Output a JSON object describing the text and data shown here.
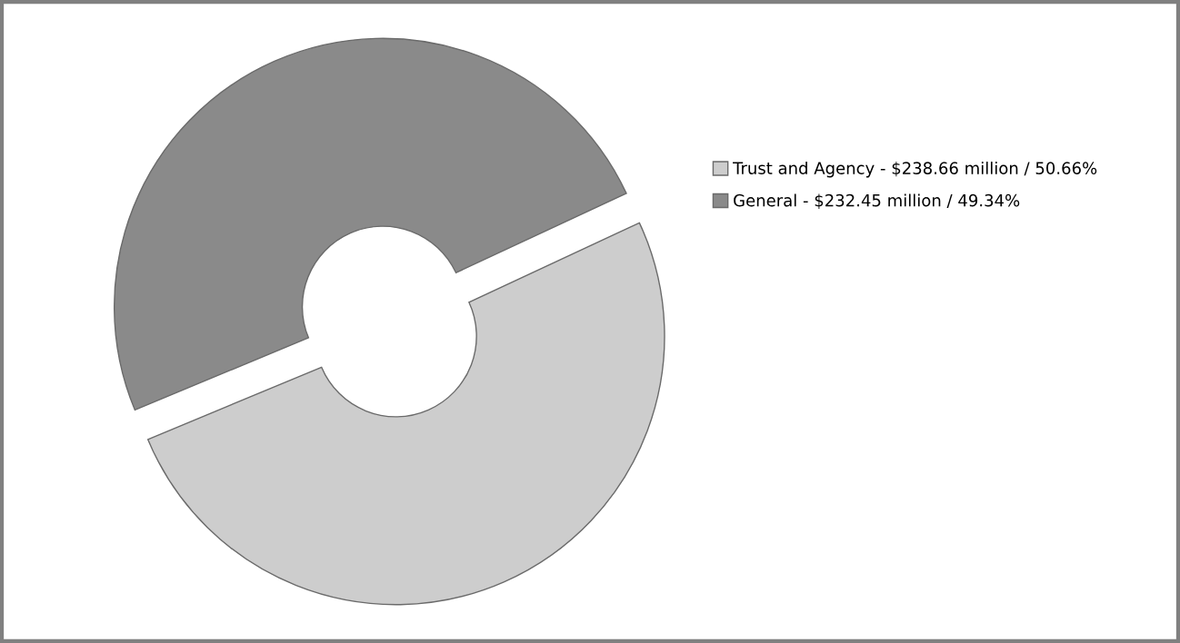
{
  "chart_data": {
    "type": "donut",
    "categories": [
      "Trust and Agency - $238.66 million / 50.66%",
      "General - $232.45 million / 49.34%"
    ],
    "values": [
      50.66,
      49.34
    ],
    "colors": [
      "#cdcdcd",
      "#8a8a8a"
    ],
    "legend": "right"
  }
}
